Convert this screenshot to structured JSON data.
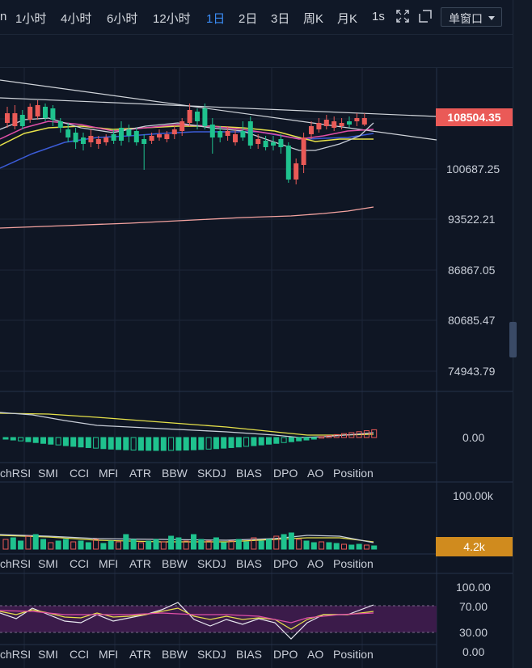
{
  "toolbar": {
    "partial_left": "n",
    "timeframes": [
      "1小时",
      "4小时",
      "6小时",
      "12小时",
      "1日",
      "2日",
      "3日",
      "周K",
      "月K",
      "1s"
    ],
    "active": "1日",
    "window_mode": "单窗口"
  },
  "price_axis": {
    "current_price": "108504.35",
    "labels": [
      "100687.25",
      "93522.21",
      "86867.05",
      "80685.47",
      "74943.79"
    ]
  },
  "macd_panel": {
    "zero_label": "0.00"
  },
  "volume_panel": {
    "max_label": "100.00k",
    "current_volume": "4.2k"
  },
  "rsi_panel": {
    "labels": [
      "100.00",
      "70.00",
      "30.00",
      "0.00"
    ]
  },
  "indicator_tabs": [
    "chRSI",
    "SMI",
    "CCI",
    "MFI",
    "ATR",
    "BBW",
    "SKDJ",
    "BIAS",
    "DPO",
    "AO",
    "Position"
  ],
  "colors": {
    "up": "#ea5a57",
    "down": "#1fc28e",
    "accent": "#3b8cf5",
    "volume_tag": "#d08b1e"
  },
  "icons": [
    "fullscreen-icon",
    "window-icon",
    "chevron-down-icon"
  ]
}
